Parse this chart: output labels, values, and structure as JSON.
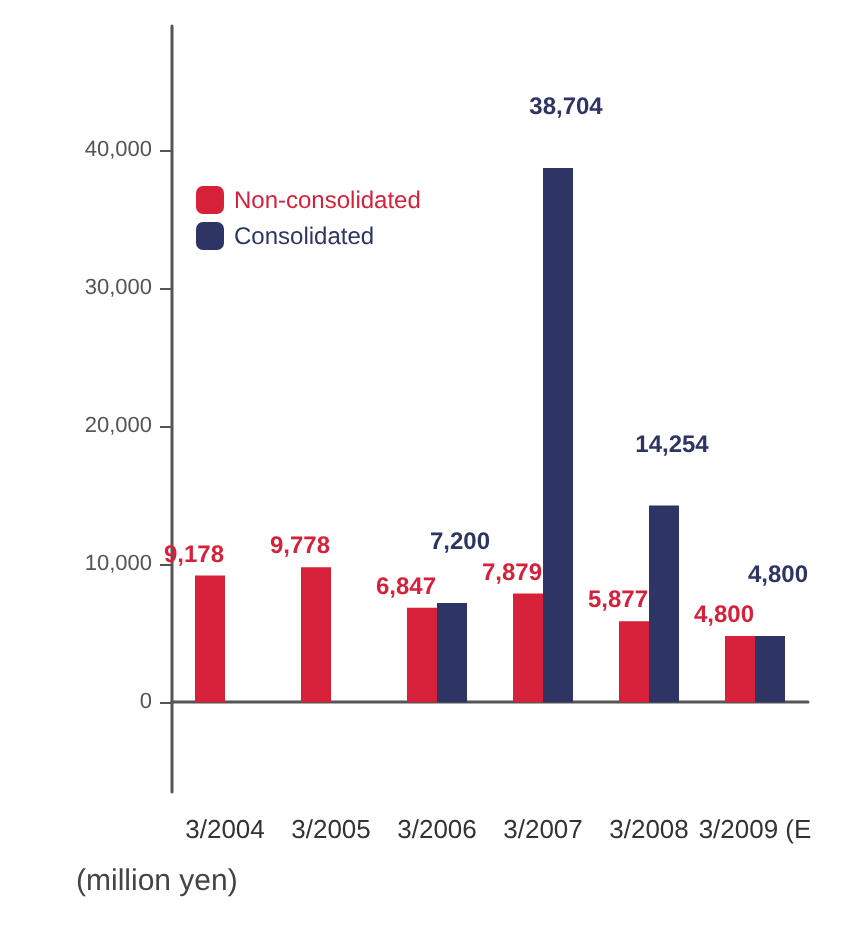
{
  "chart_data": {
    "type": "bar",
    "categories": [
      "3/2004",
      "3/2005",
      "3/2006",
      "3/2007",
      "3/2008",
      "3/2009 (E"
    ],
    "series": [
      {
        "name": "Non-consolidated",
        "color": "#d7213a",
        "values": [
          9178,
          9778,
          6847,
          7879,
          5877,
          4800
        ],
        "value_labels": [
          "9,178",
          "9,778",
          "6,847",
          "7,879",
          "5,877",
          "4,800"
        ]
      },
      {
        "name": "Consolidated",
        "color": "#2e3464",
        "values": [
          null,
          null,
          7200,
          38704,
          14254,
          4800
        ],
        "value_labels": [
          null,
          null,
          "7,200",
          "38,704",
          "14,254",
          "4,800"
        ]
      }
    ],
    "ylabel": "(million yen)",
    "ylim": [
      -6500,
      49000
    ],
    "yticks": [
      0,
      {
        "value": 10000,
        "label": "10,000"
      },
      {
        "value": 20000,
        "label": "20,000"
      },
      {
        "value": 30000,
        "label": "30,000"
      },
      {
        "value": 40000,
        "label": "40,000"
      }
    ],
    "legend": "top left"
  }
}
